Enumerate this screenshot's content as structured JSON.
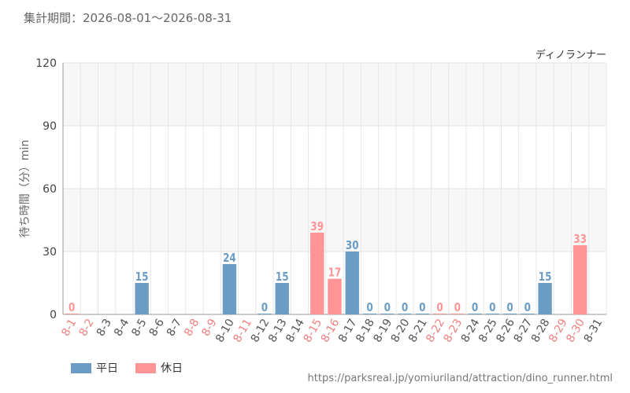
{
  "header": {
    "period": "集計期間：2026-08-01〜2026-08-31"
  },
  "chart_data": {
    "type": "bar",
    "title": "ディノランナー",
    "ylabel": "待ち時間（分）min",
    "xlabel": "",
    "ylim": [
      0,
      120
    ],
    "yticks": [
      0,
      30,
      60,
      90,
      120
    ],
    "categories": [
      "8-1",
      "8-2",
      "8-3",
      "8-4",
      "8-5",
      "8-6",
      "8-7",
      "8-8",
      "8-9",
      "8-10",
      "8-11",
      "8-12",
      "8-13",
      "8-14",
      "8-15",
      "8-16",
      "8-17",
      "8-18",
      "8-19",
      "8-20",
      "8-21",
      "8-22",
      "8-23",
      "8-24",
      "8-25",
      "8-26",
      "8-27",
      "8-28",
      "8-29",
      "8-30",
      "8-31"
    ],
    "values": [
      0,
      null,
      null,
      null,
      15,
      null,
      null,
      null,
      null,
      24,
      null,
      0,
      15,
      null,
      39,
      17,
      30,
      0,
      0,
      0,
      0,
      0,
      0,
      0,
      0,
      0,
      0,
      15,
      null,
      33,
      null
    ],
    "day_type": [
      "holiday",
      "holiday",
      "weekday",
      "weekday",
      "weekday",
      "weekday",
      "weekday",
      "holiday",
      "holiday",
      "weekday",
      "holiday",
      "weekday",
      "weekday",
      "weekday",
      "holiday",
      "holiday",
      "weekday",
      "weekday",
      "weekday",
      "weekday",
      "weekday",
      "holiday",
      "holiday",
      "weekday",
      "weekday",
      "weekday",
      "weekday",
      "weekday",
      "holiday",
      "holiday",
      "weekday"
    ],
    "colors": {
      "weekday": "#6a9cc5",
      "holiday": "#fe9496",
      "weekday_label": "#555555",
      "holiday_label": "#f08080"
    },
    "grid": true,
    "legend": {
      "position": "bottom-left",
      "items": [
        {
          "name": "平日",
          "color": "#6a9cc5"
        },
        {
          "name": "休日",
          "color": "#fe9496"
        }
      ]
    }
  },
  "footer": {
    "source": "https://parksreal.jp/yomiuriland/attraction/dino_runner.html"
  }
}
